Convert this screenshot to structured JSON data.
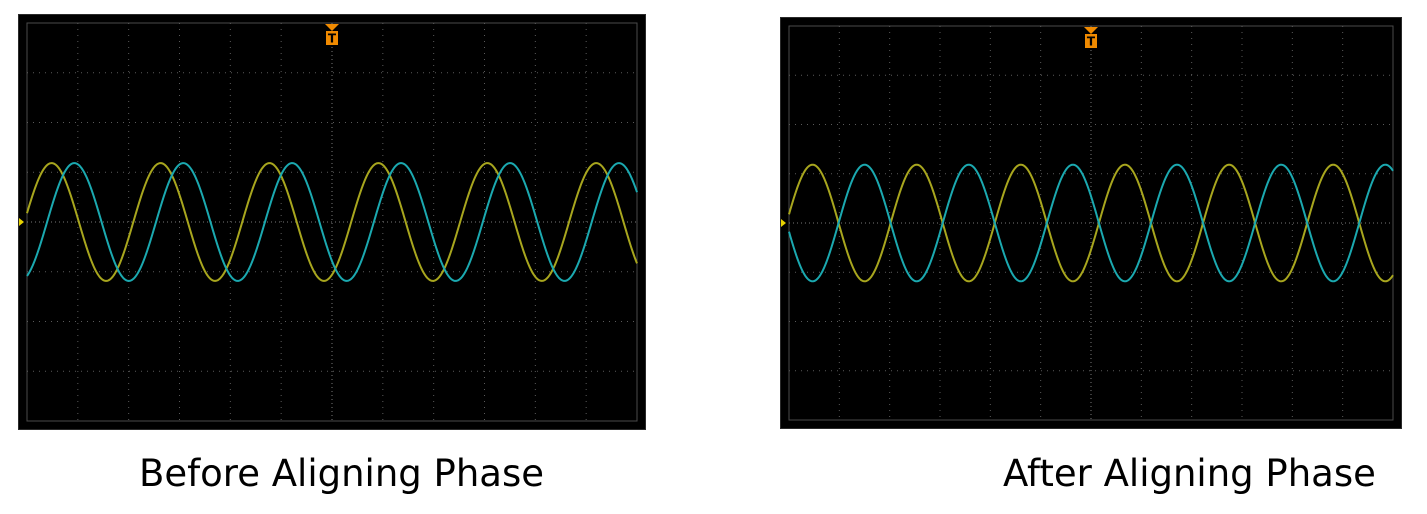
{
  "panels": [
    {
      "id": "before",
      "caption": "Before Aligning Phase",
      "trigger_label": "T",
      "trace_colors": {
        "ch1": "#a8a61e",
        "ch2": "#1ba9b0"
      },
      "grid_color": "#5a5a5a",
      "cycles": 5.6,
      "phase_offset_deg": 75
    },
    {
      "id": "after",
      "caption": "After Aligning Phase",
      "trigger_label": "T",
      "trace_colors": {
        "ch1": "#a8a61e",
        "ch2": "#1ba9b0"
      },
      "grid_color": "#5a5a5a",
      "cycles": 5.8,
      "phase_offset_deg": 180
    }
  ],
  "accent_color": "#f08a00"
}
